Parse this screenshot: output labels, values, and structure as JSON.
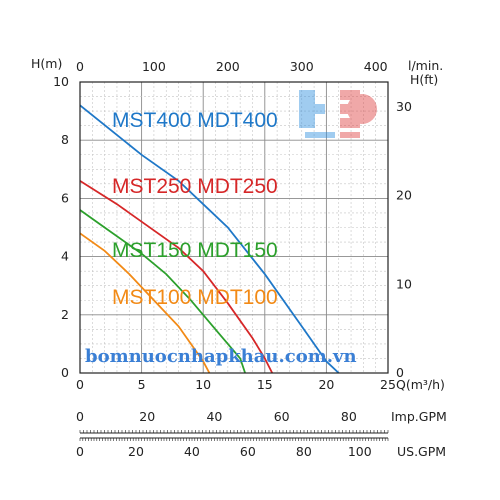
{
  "chart_data": {
    "type": "line",
    "title": "",
    "x_axis": {
      "label": "Q(m³/h)",
      "range": [
        0,
        25
      ],
      "ticks": [
        0,
        5,
        10,
        15,
        20,
        25
      ]
    },
    "y_axis_left": {
      "label": "H(m)",
      "range": [
        0,
        10
      ],
      "ticks": [
        0,
        2,
        4,
        6,
        8,
        10
      ]
    },
    "y_axis_right": {
      "label": "H(ft)",
      "ticks": [
        0,
        10,
        20,
        30
      ]
    },
    "x_axis_top": {
      "label": "l/min.",
      "ticks": [
        0,
        100,
        200,
        300,
        400
      ]
    },
    "x_axis_imp": {
      "label": "Imp.GPM",
      "ticks": [
        0,
        20,
        40,
        60,
        80
      ]
    },
    "x_axis_us": {
      "label": "US.GPM",
      "ticks": [
        0,
        20,
        40,
        60,
        80,
        100
      ]
    },
    "grid": true,
    "series": [
      {
        "name": "MST400 MDT400",
        "color": "#1f78c8",
        "points": [
          [
            0,
            9.2
          ],
          [
            5,
            7.5
          ],
          [
            8,
            6.6
          ],
          [
            10,
            5.8
          ],
          [
            12,
            5.0
          ],
          [
            15,
            3.4
          ],
          [
            18,
            1.6
          ],
          [
            20,
            0.4
          ],
          [
            21,
            0
          ]
        ]
      },
      {
        "name": "MST250 MDT250",
        "color": "#d62728",
        "points": [
          [
            0,
            6.6
          ],
          [
            3,
            5.8
          ],
          [
            5,
            5.2
          ],
          [
            8,
            4.3
          ],
          [
            10,
            3.5
          ],
          [
            12,
            2.4
          ],
          [
            14,
            1.2
          ],
          [
            15,
            0.5
          ],
          [
            15.6,
            0
          ]
        ]
      },
      {
        "name": "MST150 MDT150",
        "color": "#2ca02c",
        "points": [
          [
            0,
            5.6
          ],
          [
            2,
            5.0
          ],
          [
            5,
            4.1
          ],
          [
            7,
            3.4
          ],
          [
            9,
            2.5
          ],
          [
            11,
            1.5
          ],
          [
            13,
            0.5
          ],
          [
            13.4,
            0
          ]
        ]
      },
      {
        "name": "MST100 MDT100",
        "color": "#f28a16",
        "points": [
          [
            0,
            4.8
          ],
          [
            2,
            4.2
          ],
          [
            4,
            3.4
          ],
          [
            6,
            2.5
          ],
          [
            8,
            1.6
          ],
          [
            9,
            1.0
          ],
          [
            10,
            0.4
          ],
          [
            10.5,
            0
          ]
        ]
      }
    ]
  },
  "watermark": {
    "text": "bomnuocnhapkhau.com.vn"
  }
}
